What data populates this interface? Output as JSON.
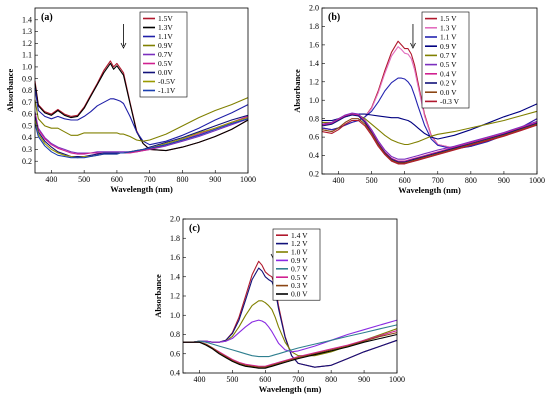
{
  "figure": {
    "title": ""
  },
  "chart_data": [
    {
      "type": "line",
      "panel_label": "(a)",
      "xlabel": "Wavelength (nm)",
      "ylabel": "Absorbance",
      "xlim": [
        350,
        1000
      ],
      "ylim": [
        0.1,
        1.5
      ],
      "xticks": [
        400,
        500,
        600,
        700,
        800,
        900,
        1000
      ],
      "yticks": [
        0.2,
        0.3,
        0.4,
        0.5,
        0.6,
        0.7,
        0.8,
        0.9,
        1.0,
        1.1,
        1.2,
        1.3,
        1.4
      ],
      "grid": false,
      "legend_position": "top-right",
      "arrow_at": 620,
      "x": [
        350,
        360,
        380,
        400,
        420,
        440,
        460,
        480,
        500,
        520,
        540,
        560,
        580,
        590,
        600,
        610,
        620,
        640,
        660,
        680,
        700,
        750,
        800,
        850,
        900,
        950,
        1000
      ],
      "series": [
        {
          "name": "1.5V",
          "color": "#b0182d",
          "values": [
            0.88,
            0.68,
            0.62,
            0.6,
            0.64,
            0.6,
            0.58,
            0.59,
            0.66,
            0.76,
            0.86,
            0.97,
            1.05,
            1.0,
            1.03,
            0.99,
            0.95,
            0.7,
            0.46,
            0.35,
            0.3,
            0.29,
            0.32,
            0.36,
            0.41,
            0.47,
            0.55
          ]
        },
        {
          "name": "1.3V",
          "color": "#000000",
          "values": [
            0.86,
            0.67,
            0.61,
            0.59,
            0.63,
            0.59,
            0.57,
            0.58,
            0.65,
            0.75,
            0.85,
            0.95,
            1.03,
            0.98,
            1.01,
            0.97,
            0.93,
            0.69,
            0.45,
            0.35,
            0.3,
            0.29,
            0.32,
            0.36,
            0.41,
            0.47,
            0.55
          ]
        },
        {
          "name": "1.1V",
          "color": "#1f1fa8",
          "values": [
            0.82,
            0.63,
            0.58,
            0.56,
            0.58,
            0.56,
            0.55,
            0.55,
            0.58,
            0.62,
            0.67,
            0.7,
            0.73,
            0.73,
            0.72,
            0.71,
            0.69,
            0.58,
            0.45,
            0.37,
            0.34,
            0.37,
            0.42,
            0.48,
            0.55,
            0.61,
            0.68
          ]
        },
        {
          "name": "0.9V",
          "color": "#808000",
          "values": [
            0.72,
            0.56,
            0.5,
            0.48,
            0.48,
            0.45,
            0.42,
            0.42,
            0.44,
            0.44,
            0.44,
            0.44,
            0.44,
            0.44,
            0.44,
            0.43,
            0.43,
            0.41,
            0.38,
            0.37,
            0.38,
            0.43,
            0.5,
            0.57,
            0.63,
            0.68,
            0.74
          ]
        },
        {
          "name": "0.7V",
          "color": "#7b2fbe",
          "values": [
            0.62,
            0.48,
            0.4,
            0.35,
            0.32,
            0.3,
            0.28,
            0.27,
            0.27,
            0.27,
            0.28,
            0.28,
            0.28,
            0.28,
            0.28,
            0.28,
            0.28,
            0.28,
            0.28,
            0.29,
            0.3,
            0.33,
            0.37,
            0.41,
            0.46,
            0.51,
            0.56
          ]
        },
        {
          "name": "0.5V",
          "color": "#d02090",
          "values": [
            0.6,
            0.47,
            0.39,
            0.34,
            0.31,
            0.29,
            0.27,
            0.26,
            0.26,
            0.27,
            0.27,
            0.27,
            0.27,
            0.27,
            0.27,
            0.27,
            0.27,
            0.27,
            0.28,
            0.29,
            0.3,
            0.34,
            0.38,
            0.43,
            0.48,
            0.53,
            0.58
          ]
        },
        {
          "name": "0.0V",
          "color": "#12127a",
          "values": [
            0.58,
            0.45,
            0.37,
            0.32,
            0.28,
            0.26,
            0.24,
            0.24,
            0.24,
            0.25,
            0.26,
            0.27,
            0.27,
            0.27,
            0.27,
            0.27,
            0.27,
            0.28,
            0.29,
            0.3,
            0.32,
            0.36,
            0.4,
            0.45,
            0.5,
            0.55,
            0.59
          ]
        },
        {
          "name": "-0.5V",
          "color": "#9a9a00",
          "values": [
            0.55,
            0.43,
            0.35,
            0.3,
            0.27,
            0.25,
            0.24,
            0.23,
            0.24,
            0.24,
            0.25,
            0.26,
            0.26,
            0.26,
            0.26,
            0.27,
            0.27,
            0.28,
            0.29,
            0.3,
            0.31,
            0.35,
            0.39,
            0.44,
            0.48,
            0.53,
            0.57
          ]
        },
        {
          "name": "-1.1V",
          "color": "#1a3fb0",
          "values": [
            0.52,
            0.41,
            0.33,
            0.28,
            0.25,
            0.24,
            0.23,
            0.23,
            0.23,
            0.24,
            0.25,
            0.26,
            0.26,
            0.26,
            0.26,
            0.27,
            0.27,
            0.28,
            0.29,
            0.3,
            0.31,
            0.34,
            0.38,
            0.42,
            0.47,
            0.52,
            0.56
          ]
        }
      ]
    },
    {
      "type": "line",
      "panel_label": "(b)",
      "xlabel": "Wavelength (nm)",
      "ylabel": "Absorbance",
      "xlim": [
        350,
        1000
      ],
      "ylim": [
        0.2,
        2.0
      ],
      "xticks": [
        400,
        500,
        600,
        700,
        800,
        900,
        1000
      ],
      "yticks": [
        0.2,
        0.4,
        0.6,
        0.8,
        1.0,
        1.2,
        1.4,
        1.6,
        1.8,
        2.0
      ],
      "grid": false,
      "legend_position": "top-right",
      "arrow_at": 625,
      "x": [
        350,
        380,
        400,
        420,
        440,
        460,
        480,
        500,
        520,
        540,
        560,
        580,
        590,
        600,
        610,
        620,
        630,
        640,
        660,
        680,
        700,
        750,
        800,
        850,
        900,
        950,
        1000
      ],
      "series": [
        {
          "name": "1.5 V",
          "color": "#b0182d",
          "values": [
            0.7,
            0.68,
            0.7,
            0.73,
            0.76,
            0.78,
            0.82,
            0.92,
            1.1,
            1.32,
            1.52,
            1.64,
            1.6,
            1.56,
            1.56,
            1.5,
            1.38,
            1.2,
            0.85,
            0.62,
            0.52,
            0.48,
            0.5,
            0.56,
            0.62,
            0.7,
            0.8
          ]
        },
        {
          "name": "1.3 V",
          "color": "#e26dbe",
          "values": [
            0.7,
            0.68,
            0.7,
            0.73,
            0.76,
            0.78,
            0.82,
            0.91,
            1.08,
            1.29,
            1.48,
            1.58,
            1.55,
            1.51,
            1.5,
            1.45,
            1.33,
            1.16,
            0.83,
            0.61,
            0.52,
            0.48,
            0.5,
            0.56,
            0.62,
            0.7,
            0.8
          ]
        },
        {
          "name": "1.1 V",
          "color": "#2424b0",
          "values": [
            0.7,
            0.68,
            0.7,
            0.73,
            0.76,
            0.78,
            0.82,
            0.88,
            0.98,
            1.1,
            1.19,
            1.24,
            1.24,
            1.23,
            1.2,
            1.15,
            1.05,
            0.94,
            0.73,
            0.58,
            0.51,
            0.47,
            0.5,
            0.55,
            0.62,
            0.7,
            0.8
          ]
        },
        {
          "name": "0.9 V",
          "color": "#000080",
          "values": [
            0.78,
            0.78,
            0.8,
            0.82,
            0.84,
            0.85,
            0.85,
            0.84,
            0.83,
            0.82,
            0.81,
            0.81,
            0.8,
            0.79,
            0.78,
            0.76,
            0.73,
            0.7,
            0.64,
            0.6,
            0.58,
            0.62,
            0.68,
            0.75,
            0.82,
            0.88,
            0.96
          ]
        },
        {
          "name": "0.7 V",
          "color": "#808000",
          "values": [
            0.76,
            0.76,
            0.8,
            0.83,
            0.85,
            0.84,
            0.8,
            0.74,
            0.68,
            0.62,
            0.57,
            0.54,
            0.53,
            0.52,
            0.52,
            0.53,
            0.54,
            0.55,
            0.58,
            0.61,
            0.63,
            0.66,
            0.7,
            0.74,
            0.78,
            0.83,
            0.88
          ]
        },
        {
          "name": "0.5 V",
          "color": "#7b2fbe",
          "values": [
            0.74,
            0.76,
            0.8,
            0.84,
            0.86,
            0.85,
            0.78,
            0.68,
            0.56,
            0.46,
            0.39,
            0.36,
            0.36,
            0.36,
            0.37,
            0.38,
            0.39,
            0.4,
            0.42,
            0.44,
            0.46,
            0.5,
            0.55,
            0.6,
            0.65,
            0.71,
            0.77
          ]
        },
        {
          "name": "0.4 V",
          "color": "#d02090",
          "values": [
            0.73,
            0.75,
            0.79,
            0.83,
            0.85,
            0.84,
            0.77,
            0.66,
            0.54,
            0.44,
            0.37,
            0.34,
            0.34,
            0.34,
            0.35,
            0.36,
            0.37,
            0.38,
            0.4,
            0.42,
            0.44,
            0.49,
            0.54,
            0.59,
            0.64,
            0.7,
            0.76
          ]
        },
        {
          "name": "0.2 V",
          "color": "#12127a",
          "values": [
            0.72,
            0.74,
            0.78,
            0.82,
            0.84,
            0.83,
            0.76,
            0.65,
            0.53,
            0.43,
            0.36,
            0.33,
            0.33,
            0.33,
            0.34,
            0.35,
            0.36,
            0.37,
            0.39,
            0.41,
            0.43,
            0.48,
            0.53,
            0.58,
            0.63,
            0.69,
            0.75
          ]
        },
        {
          "name": "0.0 V",
          "color": "#8b4513",
          "values": [
            0.68,
            0.66,
            0.7,
            0.76,
            0.8,
            0.8,
            0.74,
            0.64,
            0.52,
            0.42,
            0.35,
            0.32,
            0.32,
            0.32,
            0.33,
            0.34,
            0.35,
            0.36,
            0.38,
            0.4,
            0.42,
            0.47,
            0.52,
            0.57,
            0.62,
            0.68,
            0.74
          ]
        },
        {
          "name": "-0.3 V",
          "color": "#b0182d",
          "values": [
            0.66,
            0.64,
            0.68,
            0.74,
            0.78,
            0.78,
            0.72,
            0.62,
            0.5,
            0.41,
            0.34,
            0.31,
            0.31,
            0.31,
            0.32,
            0.33,
            0.34,
            0.35,
            0.37,
            0.39,
            0.41,
            0.46,
            0.51,
            0.56,
            0.61,
            0.67,
            0.73
          ]
        }
      ]
    },
    {
      "type": "line",
      "panel_label": "(c)",
      "xlabel": "Wavelength (nm)",
      "ylabel": "Absorbance",
      "xlim": [
        350,
        1000
      ],
      "ylim": [
        0.4,
        2.0
      ],
      "xticks": [
        400,
        500,
        600,
        700,
        800,
        900,
        1000
      ],
      "yticks": [
        0.4,
        0.6,
        0.8,
        1.0,
        1.2,
        1.4,
        1.6,
        1.8,
        2.0
      ],
      "grid": false,
      "legend_position": "top-right",
      "arrow_at": 625,
      "x": [
        350,
        380,
        400,
        420,
        440,
        460,
        480,
        500,
        520,
        540,
        560,
        580,
        590,
        600,
        610,
        620,
        630,
        640,
        660,
        680,
        700,
        750,
        800,
        850,
        900,
        950,
        1000
      ],
      "series": [
        {
          "name": "1.4 V",
          "color": "#b0182d",
          "values": [
            0.72,
            0.72,
            0.73,
            0.73,
            0.72,
            0.72,
            0.74,
            0.82,
            0.98,
            1.2,
            1.42,
            1.56,
            1.52,
            1.45,
            1.42,
            1.4,
            1.3,
            1.1,
            0.78,
            0.58,
            0.5,
            0.46,
            0.48,
            0.55,
            0.62,
            0.68,
            0.74
          ]
        },
        {
          "name": "1.2 V",
          "color": "#12127a",
          "values": [
            0.72,
            0.72,
            0.73,
            0.73,
            0.72,
            0.72,
            0.74,
            0.81,
            0.95,
            1.16,
            1.37,
            1.49,
            1.46,
            1.4,
            1.37,
            1.35,
            1.26,
            1.07,
            0.77,
            0.58,
            0.5,
            0.46,
            0.48,
            0.55,
            0.62,
            0.68,
            0.74
          ]
        },
        {
          "name": "1.0 V",
          "color": "#808000",
          "values": [
            0.72,
            0.72,
            0.73,
            0.73,
            0.72,
            0.72,
            0.73,
            0.78,
            0.88,
            1.0,
            1.1,
            1.15,
            1.15,
            1.13,
            1.1,
            1.06,
            0.98,
            0.88,
            0.72,
            0.62,
            0.58,
            0.58,
            0.62,
            0.68,
            0.74,
            0.8,
            0.86
          ]
        },
        {
          "name": "0.9 V",
          "color": "#8a2be2",
          "values": [
            0.72,
            0.72,
            0.73,
            0.73,
            0.72,
            0.72,
            0.73,
            0.76,
            0.82,
            0.88,
            0.93,
            0.95,
            0.94,
            0.92,
            0.88,
            0.83,
            0.77,
            0.71,
            0.64,
            0.62,
            0.63,
            0.68,
            0.74,
            0.8,
            0.85,
            0.9,
            0.95
          ]
        },
        {
          "name": "0.7 V",
          "color": "#2f7f8f",
          "values": [
            0.72,
            0.72,
            0.73,
            0.72,
            0.7,
            0.68,
            0.66,
            0.64,
            0.62,
            0.6,
            0.58,
            0.57,
            0.57,
            0.57,
            0.57,
            0.58,
            0.59,
            0.6,
            0.62,
            0.64,
            0.66,
            0.7,
            0.74,
            0.78,
            0.82,
            0.86,
            0.9
          ]
        },
        {
          "name": "0.5 V",
          "color": "#d02090",
          "values": [
            0.72,
            0.72,
            0.72,
            0.7,
            0.66,
            0.62,
            0.58,
            0.54,
            0.51,
            0.49,
            0.48,
            0.47,
            0.47,
            0.47,
            0.48,
            0.49,
            0.5,
            0.51,
            0.53,
            0.55,
            0.57,
            0.61,
            0.65,
            0.69,
            0.74,
            0.79,
            0.84
          ]
        },
        {
          "name": "0.3 V",
          "color": "#8b4513",
          "values": [
            0.72,
            0.72,
            0.72,
            0.7,
            0.66,
            0.61,
            0.57,
            0.53,
            0.5,
            0.48,
            0.47,
            0.46,
            0.46,
            0.46,
            0.47,
            0.48,
            0.49,
            0.5,
            0.52,
            0.54,
            0.56,
            0.6,
            0.64,
            0.68,
            0.73,
            0.78,
            0.82
          ]
        },
        {
          "name": "0.0 V",
          "color": "#000000",
          "values": [
            0.72,
            0.72,
            0.72,
            0.69,
            0.65,
            0.6,
            0.56,
            0.52,
            0.49,
            0.47,
            0.46,
            0.45,
            0.45,
            0.45,
            0.46,
            0.47,
            0.48,
            0.49,
            0.51,
            0.53,
            0.55,
            0.59,
            0.63,
            0.67,
            0.72,
            0.76,
            0.8
          ]
        }
      ]
    }
  ]
}
